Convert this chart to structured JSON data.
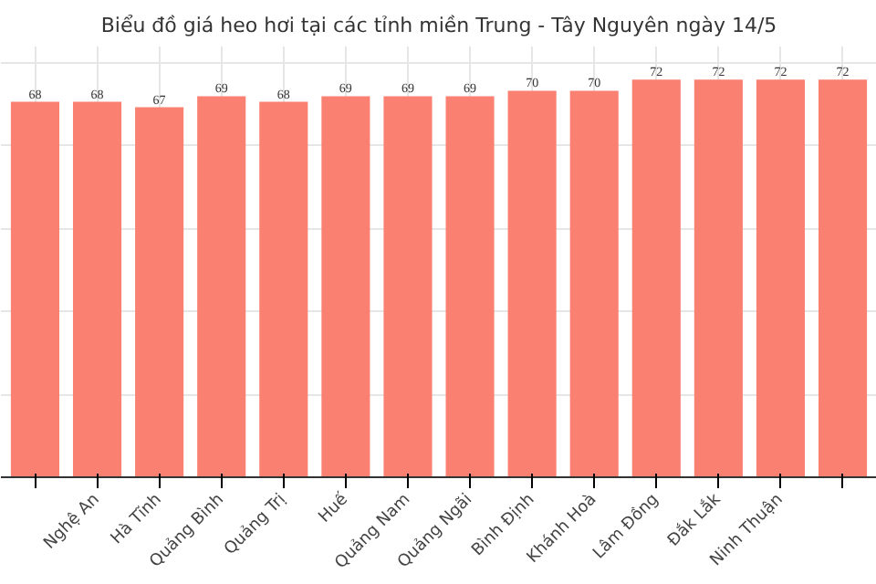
{
  "chart_data": {
    "type": "bar",
    "title": "Biểu đồ giá heo hơi tại các tỉnh miền Trung - Tây Nguyên ngày 14/5",
    "categories": [
      null,
      "Nghệ An",
      "Hà Tĩnh",
      "Quảng Bình",
      "Quảng Trị",
      "Huế",
      "Quảng Nam",
      "Quảng Ngãi",
      "Bình Định",
      "Khánh Hoà",
      "Lâm Đồng",
      "Đắk Lắk",
      "Ninh Thuận",
      null
    ],
    "values": [
      68,
      68,
      67,
      69,
      68,
      69,
      69,
      69,
      70,
      70,
      72,
      72,
      72,
      72
    ],
    "color": "#fa8072",
    "data_labels": true,
    "grid": true,
    "tick_labels": "x",
    "ylim": [
      0,
      78
    ],
    "yticks": [
      {
        "value": 15,
        "label": null
      },
      {
        "value": 30,
        "label": null
      },
      {
        "value": 45,
        "label": null
      },
      {
        "value": 60,
        "label": null
      },
      {
        "value": 75,
        "label": null
      }
    ]
  }
}
